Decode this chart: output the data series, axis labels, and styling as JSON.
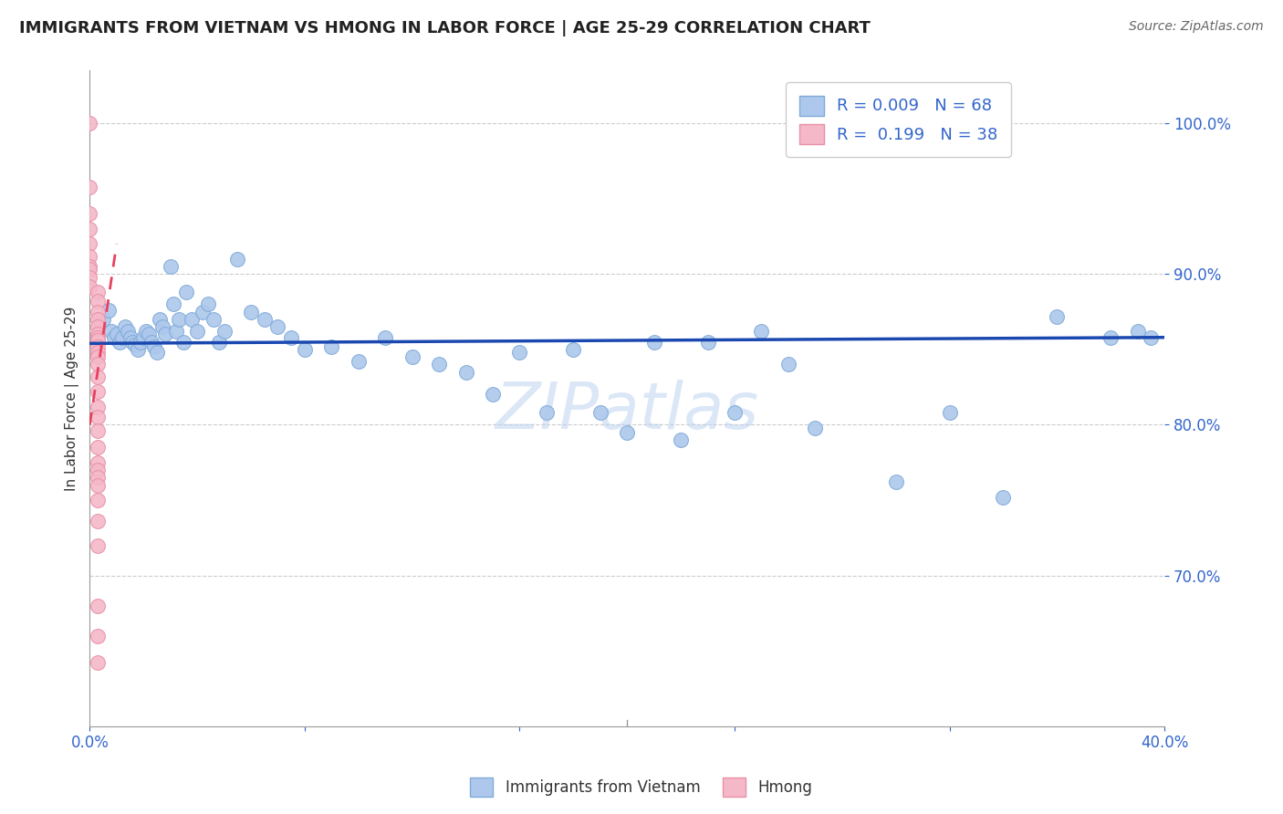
{
  "title": "IMMIGRANTS FROM VIETNAM VS HMONG IN LABOR FORCE | AGE 25-29 CORRELATION CHART",
  "source": "Source: ZipAtlas.com",
  "ylabel": "In Labor Force | Age 25-29",
  "legend_blue_r": "R = 0.009",
  "legend_blue_n": "N = 68",
  "legend_pink_r": "R =  0.199",
  "legend_pink_n": "N = 38",
  "legend_label_blue": "Immigrants from Vietnam",
  "legend_label_pink": "Hmong",
  "xmin": 0.0,
  "xmax": 0.4,
  "ymin": 0.6,
  "ymax": 1.035,
  "yticks": [
    1.0,
    0.9,
    0.8,
    0.7
  ],
  "xticks": [
    0.0,
    0.08,
    0.16,
    0.24,
    0.32,
    0.4
  ],
  "blue_scatter_x": [
    0.005,
    0.007,
    0.008,
    0.009,
    0.01,
    0.011,
    0.012,
    0.013,
    0.014,
    0.015,
    0.016,
    0.017,
    0.018,
    0.019,
    0.02,
    0.021,
    0.022,
    0.023,
    0.024,
    0.025,
    0.026,
    0.027,
    0.028,
    0.03,
    0.031,
    0.032,
    0.033,
    0.035,
    0.036,
    0.038,
    0.04,
    0.042,
    0.044,
    0.046,
    0.048,
    0.05,
    0.055,
    0.06,
    0.065,
    0.07,
    0.075,
    0.08,
    0.09,
    0.1,
    0.11,
    0.12,
    0.13,
    0.14,
    0.15,
    0.16,
    0.17,
    0.18,
    0.19,
    0.2,
    0.21,
    0.22,
    0.23,
    0.24,
    0.25,
    0.26,
    0.27,
    0.3,
    0.32,
    0.34,
    0.36,
    0.38,
    0.39,
    0.395
  ],
  "blue_scatter_y": [
    0.87,
    0.876,
    0.862,
    0.858,
    0.86,
    0.855,
    0.858,
    0.865,
    0.862,
    0.858,
    0.855,
    0.853,
    0.85,
    0.855,
    0.858,
    0.862,
    0.86,
    0.855,
    0.852,
    0.848,
    0.87,
    0.865,
    0.86,
    0.905,
    0.88,
    0.862,
    0.87,
    0.855,
    0.888,
    0.87,
    0.862,
    0.875,
    0.88,
    0.87,
    0.855,
    0.862,
    0.91,
    0.875,
    0.87,
    0.865,
    0.858,
    0.85,
    0.852,
    0.842,
    0.858,
    0.845,
    0.84,
    0.835,
    0.82,
    0.848,
    0.808,
    0.85,
    0.808,
    0.795,
    0.855,
    0.79,
    0.855,
    0.808,
    0.862,
    0.84,
    0.798,
    0.762,
    0.808,
    0.752,
    0.872,
    0.858,
    0.862,
    0.858
  ],
  "pink_scatter_x": [
    0.0,
    0.0,
    0.0,
    0.0,
    0.0,
    0.0,
    0.0,
    0.0,
    0.0,
    0.0,
    0.003,
    0.003,
    0.003,
    0.003,
    0.003,
    0.003,
    0.003,
    0.003,
    0.003,
    0.003,
    0.003,
    0.003,
    0.003,
    0.003,
    0.003,
    0.003,
    0.003,
    0.003,
    0.003,
    0.003,
    0.003,
    0.003,
    0.003,
    0.003,
    0.003,
    0.003,
    0.003,
    0.003
  ],
  "pink_scatter_y": [
    1.0,
    0.958,
    0.94,
    0.93,
    0.92,
    0.912,
    0.905,
    0.903,
    0.898,
    0.892,
    0.888,
    0.882,
    0.875,
    0.87,
    0.865,
    0.86,
    0.858,
    0.856,
    0.852,
    0.848,
    0.845,
    0.84,
    0.832,
    0.822,
    0.812,
    0.805,
    0.796,
    0.785,
    0.775,
    0.77,
    0.765,
    0.76,
    0.75,
    0.736,
    0.72,
    0.68,
    0.66,
    0.642
  ],
  "blue_line_x": [
    0.0,
    0.4
  ],
  "blue_line_y": [
    0.854,
    0.858
  ],
  "pink_line_x": [
    0.0,
    0.01
  ],
  "pink_line_y": [
    0.8,
    0.92
  ],
  "watermark": "ZIPatlas",
  "title_color": "#222222",
  "blue_color": "#adc8ec",
  "blue_edge_color": "#80aad8",
  "pink_color": "#f5b8c8",
  "pink_edge_color": "#e890a8",
  "trend_blue_color": "#1a48b0",
  "trend_pink_color": "#e84060",
  "axis_color": "#3366cc",
  "grid_color": "#cccccc",
  "marker_size": 130,
  "title_fontsize": 13,
  "source_fontsize": 10,
  "tick_fontsize": 12,
  "legend_fontsize": 13,
  "ylabel_fontsize": 11
}
